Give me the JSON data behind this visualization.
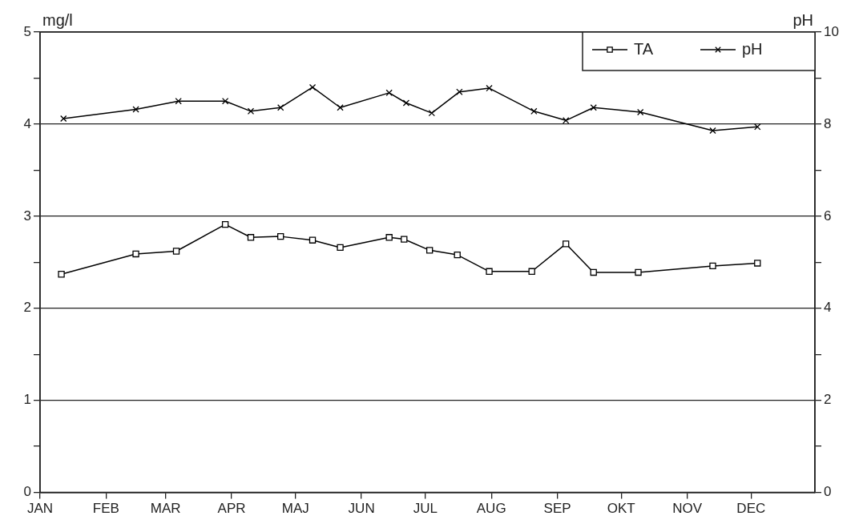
{
  "chart_data": {
    "type": "line",
    "ylabel": "mg/l",
    "y2label": "pH",
    "xlim": [
      "--01-01",
      "--12-31"
    ],
    "xticks": [
      {
        "value": "--01-01",
        "label": "JAN"
      },
      {
        "value": "--02-01",
        "label": "FEB"
      },
      {
        "value": "--03-01",
        "label": "MAR"
      },
      {
        "value": "--04-01",
        "label": "APR"
      },
      {
        "value": "--05-01",
        "label": "MAJ"
      },
      {
        "value": "--06-01",
        "label": "JUN"
      },
      {
        "value": "--07-01",
        "label": "JUL"
      },
      {
        "value": "--08-01",
        "label": "AUG"
      },
      {
        "value": "--09-01",
        "label": "SEP"
      },
      {
        "value": "--10-01",
        "label": "OKT"
      },
      {
        "value": "--11-01",
        "label": "NOV"
      },
      {
        "value": "--12-01",
        "label": "DEC"
      }
    ],
    "ylim": [
      0,
      5
    ],
    "yticks": [
      0,
      {
        "value": 0.5,
        "label": null
      },
      1,
      {
        "value": 1.5,
        "label": null
      },
      2,
      {
        "value": 2.5,
        "label": null
      },
      3,
      {
        "value": 3.5,
        "label": null
      },
      4,
      {
        "value": 4.5,
        "label": null
      },
      5
    ],
    "y2lim": [
      0,
      10
    ],
    "y2ticks": [
      0,
      {
        "value": 1,
        "label": null
      },
      2,
      {
        "value": 3,
        "label": null
      },
      4,
      {
        "value": 5,
        "label": null
      },
      6,
      {
        "value": 7,
        "label": null
      },
      8,
      {
        "value": 9,
        "label": null
      },
      10
    ],
    "grid": "y",
    "legend": "top right",
    "line_style": "solid",
    "series": [
      {
        "name": "TA",
        "color": "#000000",
        "marker": "square",
        "x": [
          "--01-11",
          "--02-15",
          "--03-06",
          "--03-29",
          "--04-10",
          "--04-24",
          "--05-09",
          "--05-22",
          "--06-14",
          "--06-21",
          "--07-03",
          "--07-16",
          "--07-31",
          "--08-20",
          "--09-05",
          "--09-18",
          "--10-09",
          "--11-13",
          "--12-04"
        ],
        "values": [
          2.37,
          2.59,
          2.62,
          2.91,
          2.77,
          2.78,
          2.74,
          2.66,
          2.77,
          2.75,
          2.63,
          2.58,
          2.4,
          2.4,
          2.7,
          2.39,
          2.39,
          2.46,
          2.49
        ]
      },
      {
        "name": "pH",
        "color": "#000000",
        "marker": "cross",
        "axis": "y2",
        "x": [
          "--01-12",
          "--02-15",
          "--03-07",
          "--03-29",
          "--04-10",
          "--04-24",
          "--05-09",
          "--05-22",
          "--06-14",
          "--06-22",
          "--07-04",
          "--07-17",
          "--07-31",
          "--08-21",
          "--09-05",
          "--09-18",
          "--10-10",
          "--11-13",
          "--12-04"
        ],
        "values": [
          8.12,
          8.32,
          8.5,
          8.5,
          8.28,
          8.36,
          8.8,
          8.36,
          8.68,
          8.46,
          8.24,
          8.7,
          8.78,
          8.28,
          8.08,
          8.36,
          8.26,
          7.86,
          7.94
        ]
      }
    ]
  }
}
